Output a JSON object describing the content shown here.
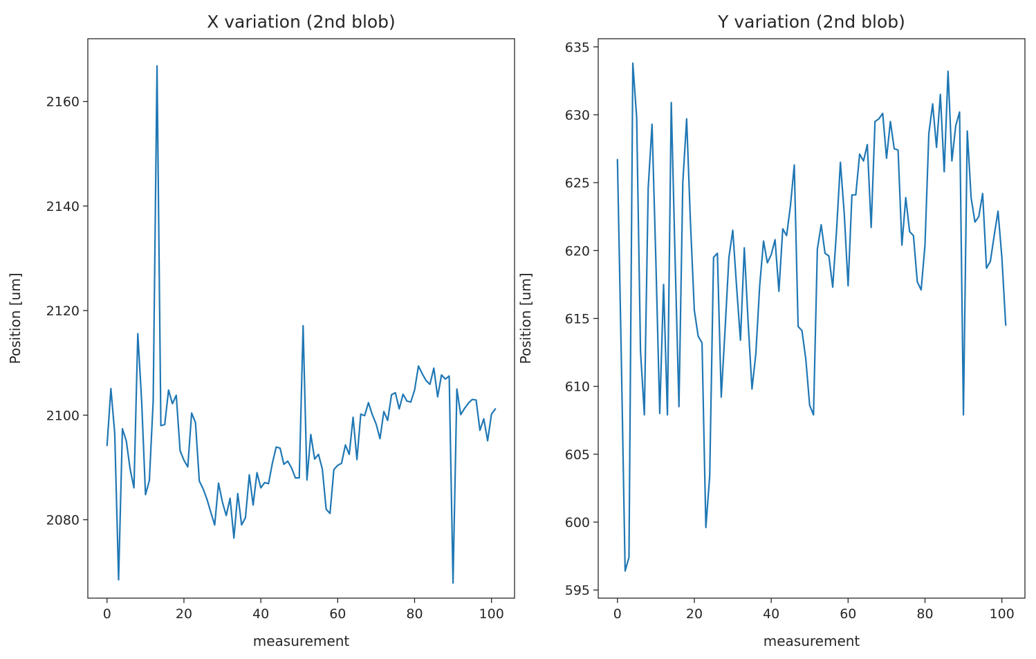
{
  "chart_data": [
    {
      "type": "line",
      "title": "X variation (2nd blob)",
      "xlabel": "measurement",
      "ylabel": "Position [um]",
      "xlim": [
        -5,
        106
      ],
      "ylim": [
        2065,
        2172
      ],
      "xticks": [
        0,
        20,
        40,
        60,
        80,
        100
      ],
      "yticks": [
        2080,
        2100,
        2120,
        2140,
        2160
      ],
      "grid": false,
      "legend": "none",
      "color": "#1f77b4",
      "series": [
        {
          "x": [
            0,
            1,
            2,
            3,
            4,
            5,
            6,
            7,
            8,
            9,
            10,
            11,
            12,
            13,
            14,
            15,
            16,
            17,
            18,
            19,
            20,
            21,
            22,
            23,
            24,
            25,
            26,
            27,
            28,
            29,
            30,
            31,
            32,
            33,
            34,
            35,
            36,
            37,
            38,
            39,
            40,
            41,
            42,
            43,
            44,
            45,
            46,
            47,
            48,
            49,
            50,
            51,
            52,
            53,
            54,
            55,
            56,
            57,
            58,
            59,
            60,
            61,
            62,
            63,
            64,
            65,
            66,
            67,
            68,
            69,
            70,
            71,
            72,
            73,
            74,
            75,
            76,
            77,
            78,
            79,
            80,
            81,
            82,
            83,
            84,
            85,
            86,
            87,
            88,
            89,
            90,
            91,
            92,
            93,
            94,
            95,
            96,
            97,
            98,
            99,
            100,
            101
          ],
          "y": [
            2094.2,
            2105.1,
            2096.5,
            2068.5,
            2097.4,
            2095.1,
            2089.7,
            2086.1,
            2115.6,
            2102.7,
            2084.8,
            2087.5,
            2102.7,
            2166.8,
            2098.0,
            2098.2,
            2104.8,
            2102.2,
            2103.8,
            2093.2,
            2091.4,
            2090.1,
            2100.4,
            2098.6,
            2087.4,
            2085.9,
            2083.9,
            2081.4,
            2079.0,
            2087.0,
            2083.4,
            2080.8,
            2084.1,
            2076.5,
            2085.0,
            2079.0,
            2080.4,
            2088.6,
            2082.8,
            2089.0,
            2086.1,
            2087.1,
            2086.9,
            2090.8,
            2093.9,
            2093.7,
            2090.6,
            2091.2,
            2089.9,
            2088.0,
            2088.0,
            2117.1,
            2087.6,
            2096.3,
            2091.6,
            2092.5,
            2089.7,
            2082.0,
            2081.2,
            2089.6,
            2090.4,
            2090.8,
            2094.3,
            2092.5,
            2099.6,
            2091.5,
            2100.2,
            2099.9,
            2102.4,
            2100.1,
            2098.3,
            2095.5,
            2100.7,
            2099.0,
            2103.9,
            2104.3,
            2101.2,
            2104.0,
            2102.7,
            2102.5,
            2104.8,
            2109.4,
            2107.9,
            2106.6,
            2105.9,
            2109.0,
            2103.5,
            2107.7,
            2106.9,
            2107.5,
            2067.9,
            2105.0,
            2100.1,
            2101.3,
            2102.3,
            2103.0,
            2102.9,
            2097.1,
            2099.3,
            2095.1,
            2100.2,
            2101.2
          ]
        }
      ]
    },
    {
      "type": "line",
      "title": "Y variation (2nd blob)",
      "xlabel": "measurement",
      "ylabel": "Position [um]",
      "xlim": [
        -5,
        106
      ],
      "ylim": [
        594.4,
        635.6
      ],
      "xticks": [
        0,
        20,
        40,
        60,
        80,
        100
      ],
      "yticks": [
        595,
        600,
        605,
        610,
        615,
        620,
        625,
        630,
        635
      ],
      "grid": false,
      "legend": "none",
      "color": "#1f77b4",
      "series": [
        {
          "x": [
            0,
            1,
            2,
            3,
            4,
            5,
            6,
            7,
            8,
            9,
            10,
            11,
            12,
            13,
            14,
            15,
            16,
            17,
            18,
            19,
            20,
            21,
            22,
            23,
            24,
            25,
            26,
            27,
            28,
            29,
            30,
            31,
            32,
            33,
            34,
            35,
            36,
            37,
            38,
            39,
            40,
            41,
            42,
            43,
            44,
            45,
            46,
            47,
            48,
            49,
            50,
            51,
            52,
            53,
            54,
            55,
            56,
            57,
            58,
            59,
            60,
            61,
            62,
            63,
            64,
            65,
            66,
            67,
            68,
            69,
            70,
            71,
            72,
            73,
            74,
            75,
            76,
            77,
            78,
            79,
            80,
            81,
            82,
            83,
            84,
            85,
            86,
            87,
            88,
            89,
            90,
            91,
            92,
            93,
            94,
            95,
            96,
            97,
            98,
            99,
            100,
            101
          ],
          "y": [
            626.7,
            612.2,
            596.4,
            597.4,
            633.8,
            629.8,
            612.6,
            607.9,
            624.6,
            629.3,
            619.2,
            608.0,
            617.5,
            607.9,
            630.9,
            619.4,
            608.5,
            625.0,
            629.7,
            622.0,
            615.6,
            613.7,
            613.2,
            599.6,
            603.4,
            619.5,
            619.8,
            609.2,
            614.2,
            619.5,
            621.5,
            617.3,
            613.4,
            620.2,
            614.7,
            609.8,
            612.4,
            617.4,
            620.7,
            619.1,
            619.7,
            620.8,
            617.0,
            621.6,
            621.1,
            623.3,
            626.3,
            614.4,
            614.1,
            612.0,
            608.6,
            607.9,
            620.1,
            621.9,
            619.8,
            619.6,
            617.3,
            621.5,
            626.5,
            622.7,
            617.4,
            624.1,
            624.1,
            627.1,
            626.6,
            627.8,
            621.7,
            629.5,
            629.7,
            630.1,
            626.8,
            629.5,
            627.5,
            627.4,
            620.4,
            623.9,
            621.4,
            621.1,
            617.7,
            617.1,
            620.4,
            628.6,
            630.8,
            627.6,
            631.5,
            625.8,
            633.2,
            626.6,
            629.2,
            630.2,
            607.9,
            628.8,
            623.9,
            622.1,
            622.5,
            624.2,
            618.7,
            619.2,
            621.1,
            622.9,
            619.5,
            614.5
          ]
        }
      ]
    }
  ]
}
